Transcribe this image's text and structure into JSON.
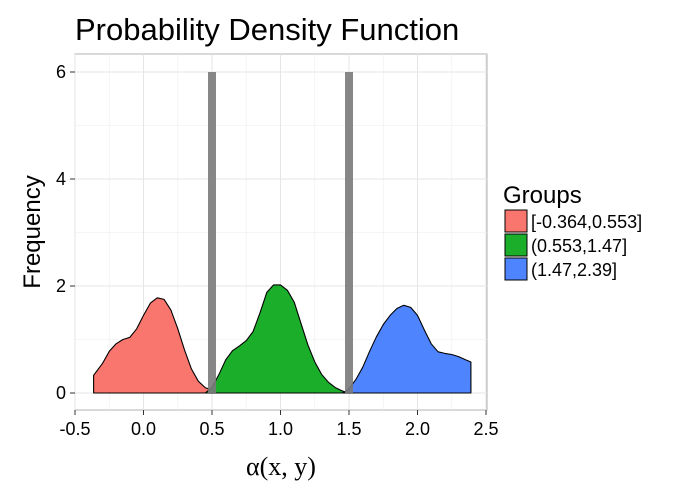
{
  "chart_data": {
    "type": "area",
    "title": "Probability Density Function",
    "xlabel": "α(x, y)",
    "ylabel": "Frequency",
    "xlim": [
      -0.5,
      2.5
    ],
    "ylim": [
      0,
      6
    ],
    "x_ticks": [
      "-0.5",
      "0.0",
      "0.5",
      "1.0",
      "1.5",
      "2.0",
      "2.5"
    ],
    "x_tick_values": [
      -0.5,
      0.0,
      0.5,
      1.0,
      1.5,
      2.0,
      2.5
    ],
    "y_ticks": [
      "0",
      "2",
      "4",
      "6"
    ],
    "y_tick_values": [
      0,
      2,
      4,
      6
    ],
    "grid": true,
    "legend": {
      "title": "Groups",
      "placement": "right"
    },
    "series": [
      {
        "name": "[-0.364,0.553]",
        "color": "#F8766D",
        "x": [
          -0.364,
          -0.3,
          -0.25,
          -0.2,
          -0.15,
          -0.1,
          -0.05,
          0.0,
          0.05,
          0.1,
          0.15,
          0.2,
          0.25,
          0.3,
          0.35,
          0.4,
          0.45,
          0.5,
          0.553
        ],
        "y": [
          0.33,
          0.55,
          0.78,
          0.92,
          1.0,
          1.04,
          1.2,
          1.45,
          1.68,
          1.78,
          1.75,
          1.55,
          1.2,
          0.8,
          0.45,
          0.22,
          0.1,
          0.05,
          0.03
        ]
      },
      {
        "name": "(0.553,1.47]",
        "color": "#1BAE2B",
        "x": [
          0.45,
          0.5,
          0.553,
          0.6,
          0.65,
          0.7,
          0.75,
          0.8,
          0.85,
          0.9,
          0.95,
          1.0,
          1.05,
          1.1,
          1.15,
          1.2,
          1.25,
          1.3,
          1.35,
          1.4,
          1.45,
          1.47
        ],
        "y": [
          0.0,
          0.1,
          0.36,
          0.62,
          0.79,
          0.88,
          0.98,
          1.15,
          1.5,
          1.88,
          2.02,
          2.02,
          1.92,
          1.7,
          1.3,
          0.9,
          0.58,
          0.35,
          0.2,
          0.1,
          0.04,
          0.02
        ]
      },
      {
        "name": "(1.47,2.39]",
        "color": "#4F84FF",
        "x": [
          1.45,
          1.47,
          1.5,
          1.55,
          1.6,
          1.65,
          1.7,
          1.75,
          1.8,
          1.85,
          1.9,
          1.95,
          2.0,
          2.05,
          2.1,
          2.15,
          2.2,
          2.25,
          2.3,
          2.35,
          2.39
        ],
        "y": [
          0.0,
          0.02,
          0.08,
          0.25,
          0.48,
          0.78,
          1.05,
          1.28,
          1.45,
          1.58,
          1.64,
          1.6,
          1.45,
          1.18,
          0.92,
          0.77,
          0.74,
          0.72,
          0.68,
          0.62,
          0.58
        ]
      }
    ],
    "vertical_lines": [
      {
        "x": 0.5,
        "color": "#7A7A7A",
        "ymax": 6
      },
      {
        "x": 1.5,
        "color": "#7A7A7A",
        "ymax": 6
      }
    ]
  }
}
